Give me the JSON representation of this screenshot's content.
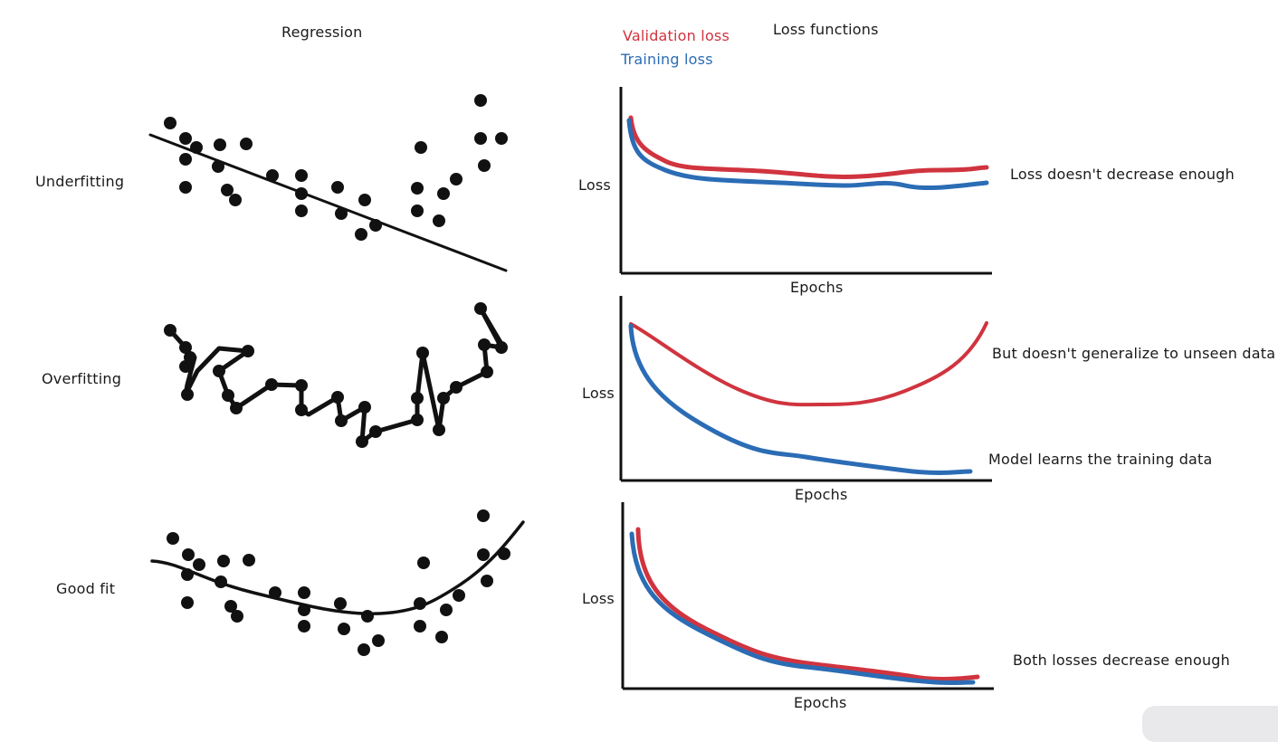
{
  "headers": {
    "regression": "Regression",
    "loss_functions": "Loss functions"
  },
  "legend": {
    "validation_loss": "Validation loss",
    "training_loss": "Training loss",
    "validation_color": "#d0343f",
    "training_color": "#2b6cb5"
  },
  "rows": [
    {
      "label": "Underfitting",
      "axis": {
        "ylabel": "Loss",
        "xlabel": "Epochs"
      },
      "notes": [
        "Loss doesn't decrease enough"
      ]
    },
    {
      "label": "Overfitting",
      "axis": {
        "ylabel": "Loss",
        "xlabel": "Epochs"
      },
      "notes": [
        "But doesn't generalize to unseen data",
        "Model learns the training data"
      ]
    },
    {
      "label": "Good fit",
      "axis": {
        "ylabel": "Loss",
        "xlabel": "Epochs"
      },
      "notes": [
        "Both losses decrease enough"
      ]
    }
  ]
}
